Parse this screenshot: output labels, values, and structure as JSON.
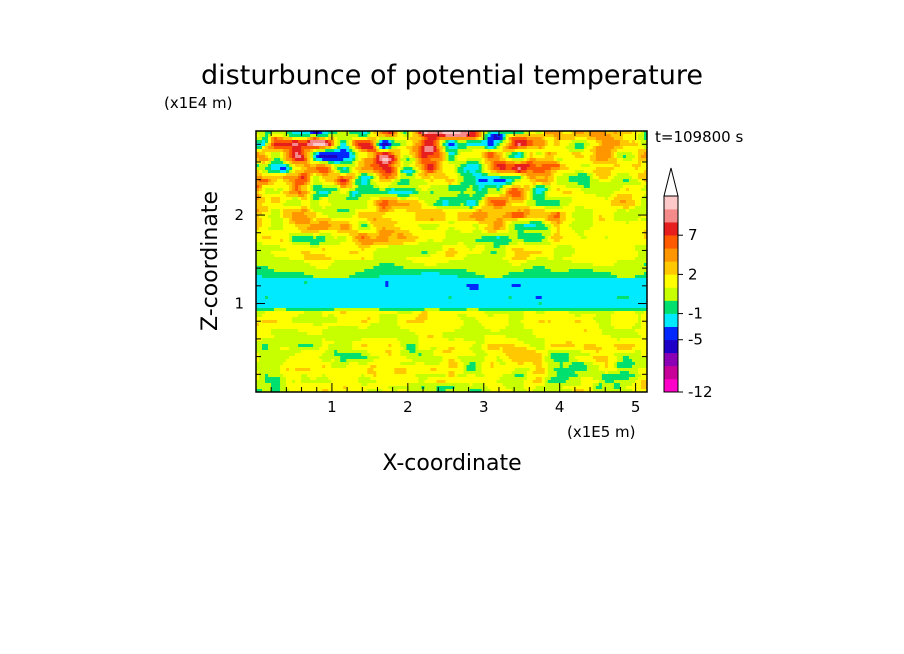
{
  "chart_data": {
    "type": "heatmap",
    "title": "disturbunce of potential temperature",
    "xlabel": "X-coordinate",
    "ylabel": "Z-coordinate",
    "x_unit": "(x1E5 m)",
    "y_unit": "(x1E4 m)",
    "time_label": "t=109800 s",
    "xlim": [
      0,
      5.15
    ],
    "ylim": [
      0,
      2.95
    ],
    "x_ticks": [
      "1",
      "2",
      "3",
      "4",
      "5"
    ],
    "y_ticks": [
      "1",
      "2"
    ],
    "colorbar": {
      "levels_colors": [
        "#ff00c8",
        "#c8009a",
        "#8b00b4",
        "#1e00c8",
        "#0028ff",
        "#00eaff",
        "#00e06e",
        "#c8ff00",
        "#ffff00",
        "#ffc800",
        "#ff9600",
        "#ff5a00",
        "#e61e1e",
        "#f58a8a",
        "#fcc8c8"
      ],
      "tick_labels": [
        "7",
        "2",
        "-1",
        "-5",
        "-12"
      ],
      "extend": "max"
    },
    "field_description_values": {
      "cyan_band_z": [
        0.95,
        1.3
      ],
      "upper_region_z": [
        1.5,
        2.95
      ],
      "lower_region_z": [
        0,
        0.9
      ]
    }
  }
}
